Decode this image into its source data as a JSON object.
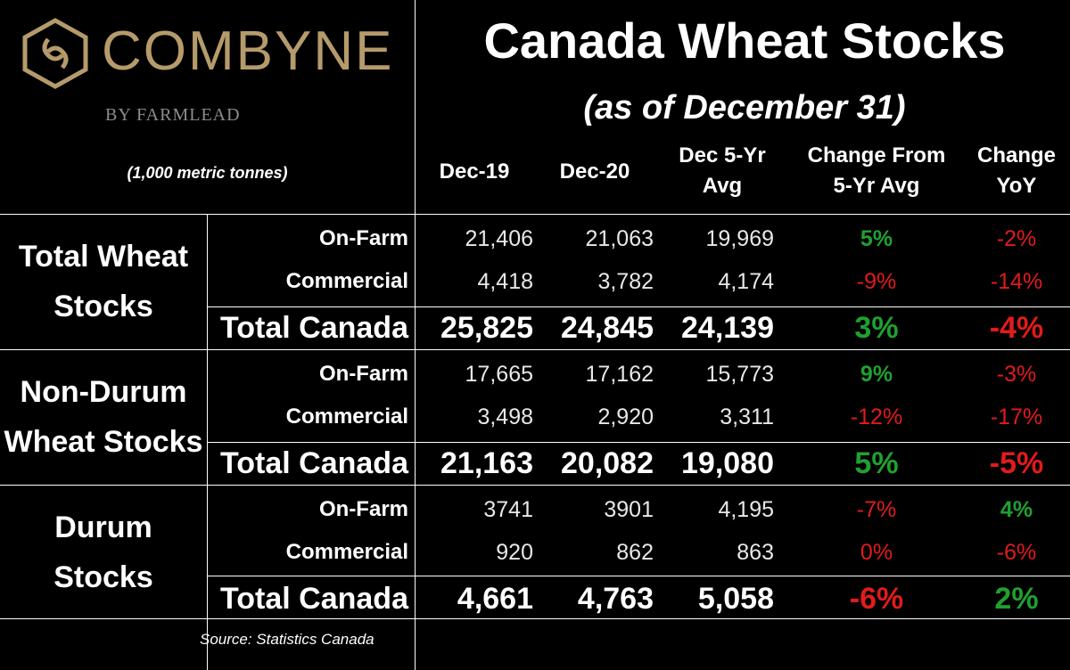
{
  "logo": {
    "brand": "COMBYNE",
    "by": "BY FARMLEAD",
    "units": "(1,000 metric tonnes)",
    "brand_color": "#b59b6b"
  },
  "title": "Canada Wheat Stocks",
  "subtitle": "(as of December 31)",
  "source": "Source: Statistics Canada",
  "colors": {
    "positive": "#1fa12f",
    "negative": "#e21b1b",
    "background": "#000000",
    "text": "#ffffff"
  },
  "chart_data": {
    "type": "table",
    "columns": [
      "Dec-19",
      "Dec-20",
      "Dec 5-Yr\nAvg",
      "Change From\n5-Yr Avg",
      "Change\nYoY"
    ],
    "groups": [
      {
        "label": "Total Wheat\nStocks",
        "rows": [
          {
            "label": "On-Farm",
            "values": [
              "21,406",
              "21,063",
              "19,969"
            ],
            "change_5yr": "5%",
            "change_yoy": "-2%"
          },
          {
            "label": "Commercial",
            "values": [
              "4,418",
              "3,782",
              "4,174"
            ],
            "change_5yr": "-9%",
            "change_yoy": "-14%"
          },
          {
            "label": "Total Canada",
            "values": [
              "25,825",
              "24,845",
              "24,139"
            ],
            "change_5yr": "3%",
            "change_yoy": "-4%"
          }
        ]
      },
      {
        "label": "Non-Durum\nWheat Stocks",
        "rows": [
          {
            "label": "On-Farm",
            "values": [
              "17,665",
              "17,162",
              "15,773"
            ],
            "change_5yr": "9%",
            "change_yoy": "-3%"
          },
          {
            "label": "Commercial",
            "values": [
              "3,498",
              "2,920",
              "3,311"
            ],
            "change_5yr": "-12%",
            "change_yoy": "-17%"
          },
          {
            "label": "Total Canada",
            "values": [
              "21,163",
              "20,082",
              "19,080"
            ],
            "change_5yr": "5%",
            "change_yoy": "-5%"
          }
        ]
      },
      {
        "label": "Durum\nStocks",
        "rows": [
          {
            "label": "On-Farm",
            "values": [
              "3741",
              "3901",
              "4,195"
            ],
            "change_5yr": "-7%",
            "change_yoy": "4%"
          },
          {
            "label": "Commercial",
            "values": [
              "920",
              "862",
              "863"
            ],
            "change_5yr": "0%",
            "change_yoy": "-6%"
          },
          {
            "label": "Total Canada",
            "values": [
              "4,661",
              "4,763",
              "5,058"
            ],
            "change_5yr": "-6%",
            "change_yoy": "2%"
          }
        ]
      }
    ]
  }
}
